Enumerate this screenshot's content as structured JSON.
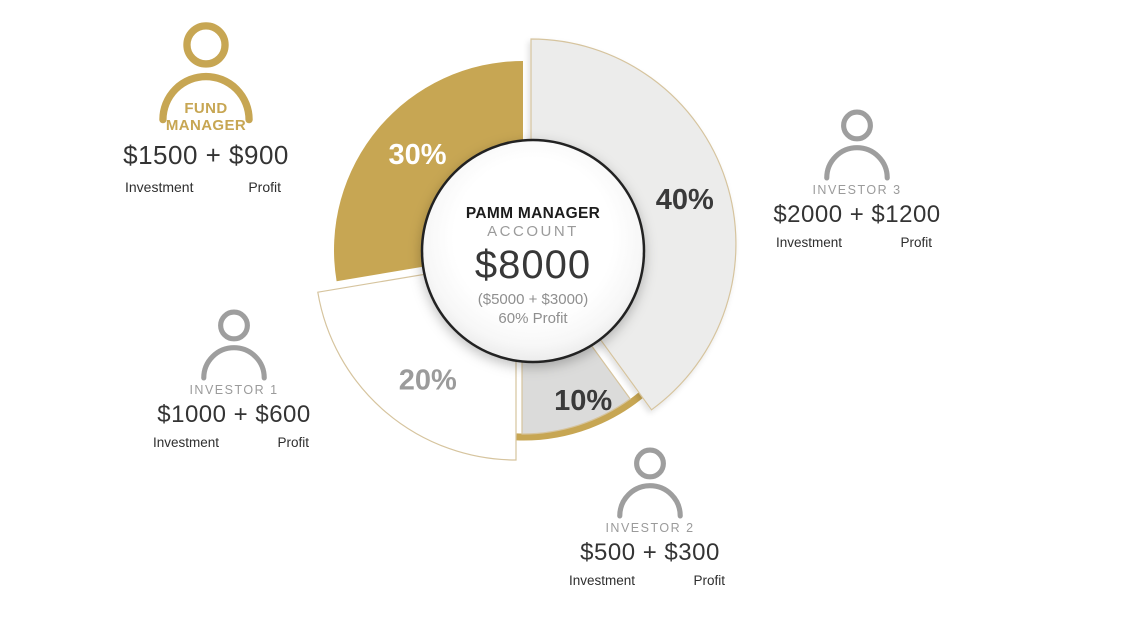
{
  "colors": {
    "gold": "#c7a653",
    "icon_gray": "#9e9e9e",
    "slice_border": "#d6c49e",
    "text_dark": "#3a3a3a",
    "text_gray": "#9b9b9b"
  },
  "center": {
    "title": "PAMM MANAGER",
    "subtitle": "ACCOUNT",
    "amount": "$8000",
    "breakdown": "($5000 + $3000)",
    "profit_note": "60% Profit"
  },
  "chart_data": {
    "type": "pie",
    "style": "donut-infographic",
    "start_angle_deg_from_top": 0,
    "direction": "clockwise",
    "slices": [
      {
        "label": "40%",
        "value": 40,
        "color": "#ececeb",
        "label_color": "#3a3a3a",
        "owner": "INVESTOR 3",
        "exploded": true
      },
      {
        "label": "10%",
        "value": 10,
        "color": "#dbdbda",
        "label_color": "#3a3a3a",
        "owner": "INVESTOR 2",
        "exploded": false
      },
      {
        "label": "20%",
        "value": 20,
        "color": "#ffffff",
        "label_color": "#9b9b9b",
        "owner": "INVESTOR 1",
        "exploded": true
      },
      {
        "label": "30%",
        "value": 30,
        "color": "#c7a653",
        "label_color": "#ffffff",
        "owner": "FUND MANAGER",
        "exploded": false
      }
    ],
    "center_text": [
      "PAMM MANAGER",
      "ACCOUNT",
      "$8000",
      "($5000 + $3000)",
      "60% Profit"
    ]
  },
  "people": [
    {
      "name": "FUND MANAGER",
      "amount": "$1500 + $900",
      "investment_label": "Investment",
      "profit_label": "Profit"
    },
    {
      "name": "INVESTOR 1",
      "amount": "$1000 + $600",
      "investment_label": "Investment",
      "profit_label": "Profit"
    },
    {
      "name": "INVESTOR 2",
      "amount": "$500 + $300",
      "investment_label": "Investment",
      "profit_label": "Profit"
    },
    {
      "name": "INVESTOR 3",
      "amount": "$2000 + $1200",
      "investment_label": "Investment",
      "profit_label": "Profit"
    }
  ]
}
